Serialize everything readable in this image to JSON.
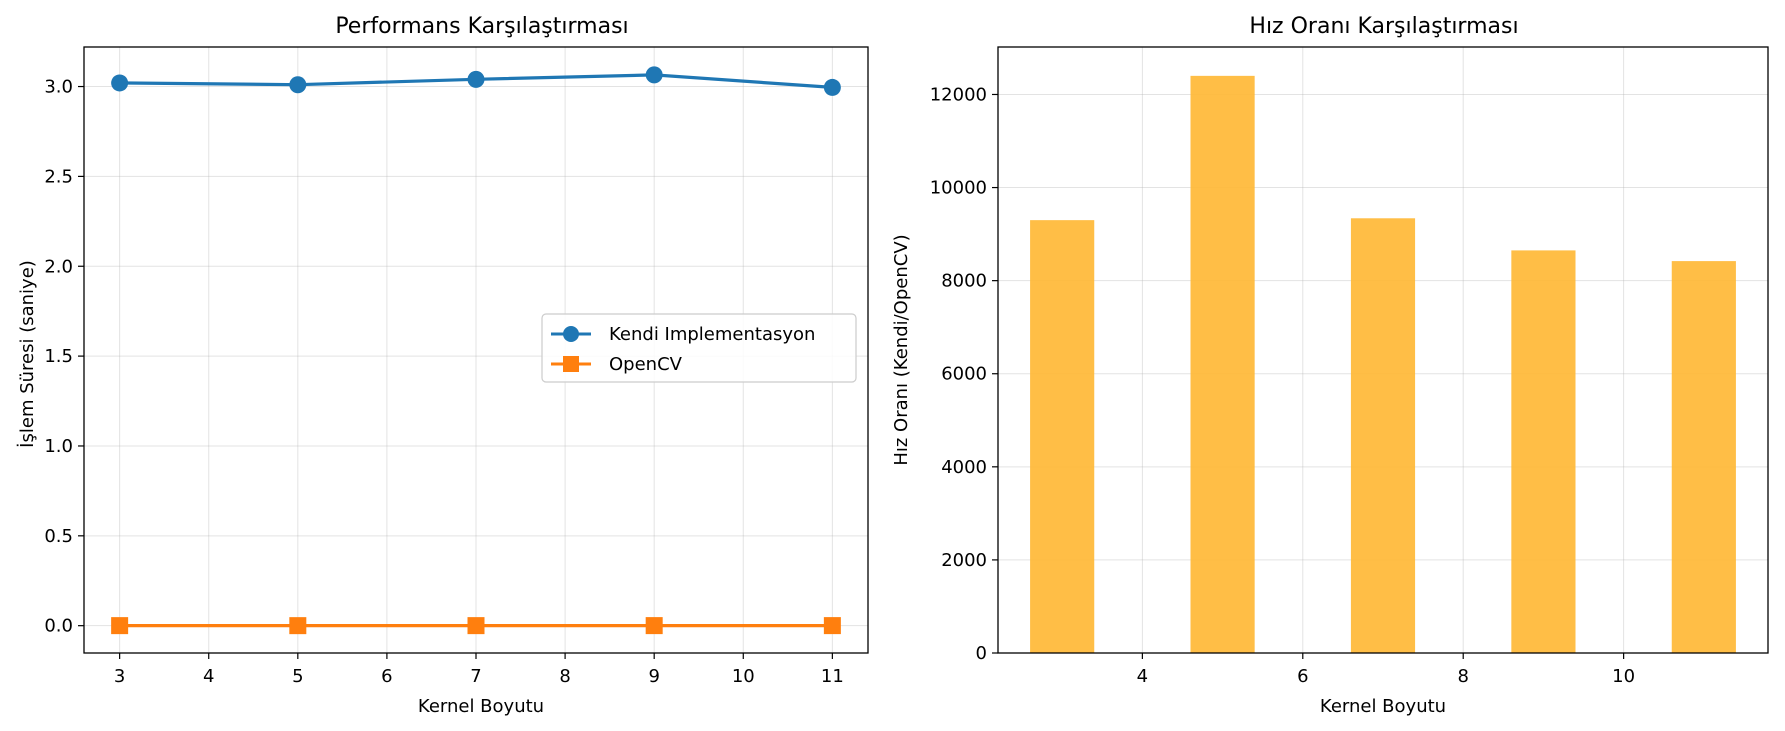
{
  "chart_data": [
    {
      "type": "line",
      "title": "Performans Karşılaştırması",
      "xlabel": "Kernel Boyutu",
      "ylabel": "İşlem Süresi (saniye)",
      "x": [
        3,
        5,
        7,
        9,
        11
      ],
      "xticks": [
        "3",
        "4",
        "5",
        "6",
        "7",
        "8",
        "9",
        "10",
        "11"
      ],
      "yticks": [
        "0.0",
        "0.5",
        "1.0",
        "1.5",
        "2.0",
        "2.5",
        "3.0"
      ],
      "xlim": [
        2.6,
        11.4
      ],
      "ylim": [
        -0.152,
        3.22
      ],
      "grid": true,
      "legend_position": "center-right",
      "series": [
        {
          "name": "Kendi Implementasyon",
          "values": [
            3.02,
            3.01,
            3.04,
            3.065,
            2.995
          ],
          "color": "#1f77b4",
          "marker": "circle"
        },
        {
          "name": "OpenCV",
          "values": [
            0.0003,
            0.0002,
            0.0003,
            0.0004,
            0.0004
          ],
          "color": "#ff7f0e",
          "marker": "square"
        }
      ]
    },
    {
      "type": "bar",
      "title": "Hız Oranı Karşılaştırması",
      "xlabel": "Kernel Boyutu",
      "ylabel": "Hız Oranı (Kendi/OpenCV)",
      "x": [
        3,
        5,
        7,
        9,
        11
      ],
      "values": [
        9300,
        12400,
        9340,
        8650,
        8420
      ],
      "bar_width": 0.8,
      "color": "#ffb732",
      "xticks": [
        "4",
        "6",
        "8",
        "10"
      ],
      "yticks": [
        "0",
        "2000",
        "4000",
        "6000",
        "8000",
        "10000",
        "12000"
      ],
      "xlim": [
        2.2,
        11.8
      ],
      "ylim": [
        0,
        13020
      ],
      "grid": true
    }
  ]
}
